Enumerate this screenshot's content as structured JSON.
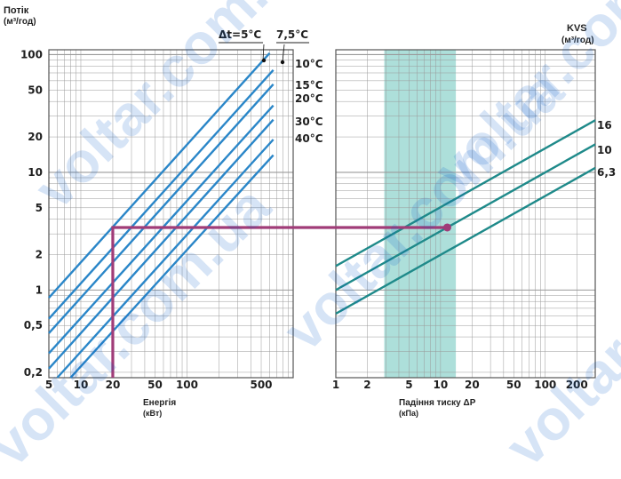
{
  "chart_data": [
    {
      "type": "line",
      "title": "",
      "ylabel_line1": "Потік",
      "ylabel_line2": "(м³/год)",
      "xlabel_line1": "Енергія",
      "xlabel_line2": "(кВт)",
      "xscale": "log",
      "yscale": "log",
      "xlim": [
        5,
        1000
      ],
      "ylim": [
        0.18,
        110
      ],
      "xticks": [
        5,
        10,
        20,
        50,
        100,
        500
      ],
      "yticks": [
        0.2,
        0.5,
        1,
        2,
        5,
        10,
        20,
        50,
        100
      ],
      "ytick_labels": [
        "0,2",
        "0,5",
        "1",
        "2",
        "5",
        "10",
        "20",
        "50",
        "100"
      ],
      "dt_header": [
        "Δt=5°C",
        "7,5°C"
      ],
      "series": [
        {
          "name": "Δt=5°C",
          "x": [
            5,
            600
          ],
          "y": [
            0.86,
            103
          ]
        },
        {
          "name": "7,5°C",
          "x": [
            5,
            650
          ],
          "y": [
            0.57,
            74
          ]
        },
        {
          "name": "10°C",
          "x": [
            5,
            650
          ],
          "y": [
            0.43,
            56
          ]
        },
        {
          "name": "15°C",
          "x": [
            5,
            650
          ],
          "y": [
            0.29,
            37
          ]
        },
        {
          "name": "20°C",
          "x": [
            5,
            650
          ],
          "y": [
            0.215,
            28
          ]
        },
        {
          "name": "30°C",
          "x": [
            6,
            650
          ],
          "y": [
            0.18,
            19
          ]
        },
        {
          "name": "40°C",
          "x": [
            8,
            650
          ],
          "y": [
            0.18,
            14
          ]
        }
      ]
    },
    {
      "type": "line",
      "title": "",
      "ylabel_line1": "KVS",
      "ylabel_line2": "(м³/год)",
      "xlabel_line1": "Падіння тиску ΔP",
      "xlabel_line2": "(кПа)",
      "xscale": "log",
      "yscale": "log",
      "xlim": [
        1,
        300
      ],
      "ylim": [
        0.18,
        110
      ],
      "xticks": [
        1,
        2,
        5,
        10,
        20,
        50,
        100,
        200
      ],
      "highlight_band": [
        2.9,
        14
      ],
      "series": [
        {
          "name": "16",
          "x": [
            1,
            300
          ],
          "y": [
            1.6,
            27.7
          ]
        },
        {
          "name": "10",
          "x": [
            1,
            300
          ],
          "y": [
            1.0,
            17.3
          ]
        },
        {
          "name": "6,3",
          "x": [
            1,
            300
          ],
          "y": [
            0.63,
            10.9
          ]
        }
      ]
    }
  ],
  "example_path": {
    "energy_kw": 20,
    "flow_m3h": 3.4,
    "dp_kpa": 11.6
  },
  "colors": {
    "series": "#2a86c8",
    "kvs": "#1f8a8a",
    "band": "#9fd9d4",
    "path": "#a03c78",
    "grid": "#9a9a9a"
  },
  "watermark": "voltar.com.ua"
}
